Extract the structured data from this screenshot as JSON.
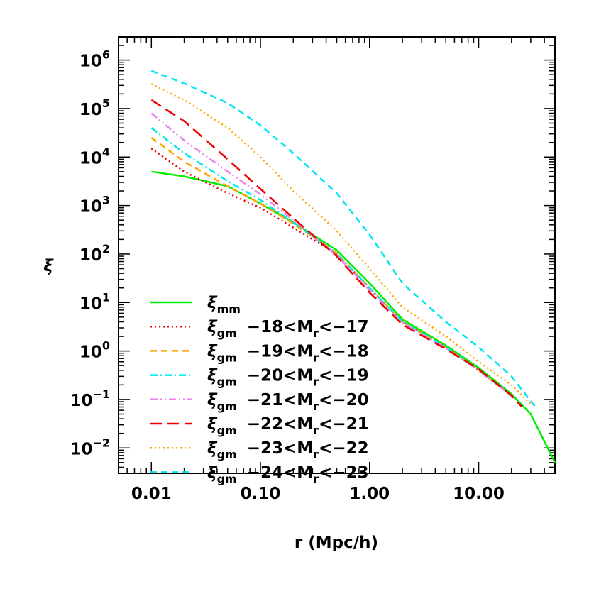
{
  "chart_data": {
    "type": "line",
    "xlabel": "r (Mpc/h)",
    "ylabel": "ξ",
    "x_scale": "log",
    "y_scale": "log",
    "xlim": [
      0.005,
      50
    ],
    "ylim": [
      0.003,
      3000000
    ],
    "x_ticks": [
      0.01,
      0.1,
      1,
      10
    ],
    "x_tick_labels": [
      "0.01",
      "0.10",
      "1.00",
      "10.00"
    ],
    "y_ticks": [
      0.01,
      0.1,
      1,
      10,
      100,
      1000,
      10000,
      100000,
      1000000
    ],
    "y_tick_labels": [
      {
        "base": "10",
        "exp": "−2"
      },
      {
        "base": "10",
        "exp": "−1"
      },
      {
        "base": "10",
        "exp": "0"
      },
      {
        "base": "10",
        "exp": "1"
      },
      {
        "base": "10",
        "exp": "2"
      },
      {
        "base": "10",
        "exp": "3"
      },
      {
        "base": "10",
        "exp": "4"
      },
      {
        "base": "10",
        "exp": "5"
      },
      {
        "base": "10",
        "exp": "6"
      }
    ],
    "grid": false,
    "legend_position": "lower-left",
    "series": [
      {
        "name": "ξmm",
        "xi": "ξ",
        "sub": "mm",
        "range": "",
        "color": "#00ee00",
        "dash": "solid",
        "points": [
          [
            0.01,
            5000
          ],
          [
            0.02,
            4000
          ],
          [
            0.05,
            2500
          ],
          [
            0.1,
            1100
          ],
          [
            0.2,
            450
          ],
          [
            0.5,
            120
          ],
          [
            1,
            25
          ],
          [
            2,
            4.5
          ],
          [
            5,
            1.3
          ],
          [
            10,
            0.45
          ],
          [
            20,
            0.13
          ],
          [
            30,
            0.05
          ],
          [
            50,
            0.005
          ]
        ]
      },
      {
        "name": "ξgm −18<Mr<−17",
        "xi": "ξ",
        "sub": "gm",
        "range": "−18<M",
        "range_sub": "r",
        "range_end": "<−17",
        "color": "#ee0000",
        "dash": "dotted",
        "points": [
          [
            0.01,
            15000
          ],
          [
            0.02,
            5000
          ],
          [
            0.05,
            1800
          ],
          [
            0.1,
            900
          ],
          [
            0.2,
            350
          ],
          [
            0.5,
            100
          ],
          [
            1,
            20
          ],
          [
            2,
            4
          ],
          [
            5,
            1.2
          ],
          [
            10,
            0.4
          ],
          [
            20,
            0.12
          ]
        ]
      },
      {
        "name": "ξgm −19<Mr<−18",
        "xi": "ξ",
        "sub": "gm",
        "range": "−19<M",
        "range_sub": "r",
        "range_end": "<−18",
        "color": "#ffa500",
        "dash": "dashed",
        "points": [
          [
            0.01,
            25000
          ],
          [
            0.02,
            8000
          ],
          [
            0.05,
            2500
          ],
          [
            0.1,
            1100
          ],
          [
            0.2,
            420
          ],
          [
            0.5,
            105
          ],
          [
            1,
            20
          ],
          [
            2,
            4
          ],
          [
            5,
            1.2
          ],
          [
            10,
            0.4
          ],
          [
            20,
            0.12
          ]
        ]
      },
      {
        "name": "ξgm −20<Mr<−19",
        "xi": "ξ",
        "sub": "gm",
        "range": "−20<M",
        "range_sub": "r",
        "range_end": "<−19",
        "color": "#00e5ee",
        "dash": "dashdot",
        "points": [
          [
            0.01,
            40000
          ],
          [
            0.02,
            12000
          ],
          [
            0.05,
            3200
          ],
          [
            0.1,
            1300
          ],
          [
            0.2,
            450
          ],
          [
            0.5,
            100
          ],
          [
            1,
            20
          ],
          [
            2,
            4
          ],
          [
            5,
            1.2
          ],
          [
            10,
            0.4
          ],
          [
            20,
            0.12
          ]
        ]
      },
      {
        "name": "ξgm −21<Mr<−20",
        "xi": "ξ",
        "sub": "gm",
        "range": "−21<M",
        "range_sub": "r",
        "range_end": "<−20",
        "color": "#ee82ee",
        "dash": "dashdotdot",
        "points": [
          [
            0.01,
            80000
          ],
          [
            0.02,
            22000
          ],
          [
            0.05,
            5000
          ],
          [
            0.1,
            1700
          ],
          [
            0.2,
            500
          ],
          [
            0.5,
            95
          ],
          [
            1,
            18
          ],
          [
            2,
            3.8
          ],
          [
            5,
            1.15
          ],
          [
            10,
            0.4
          ],
          [
            20,
            0.12
          ]
        ]
      },
      {
        "name": "ξgm −22<Mr<−21",
        "xi": "ξ",
        "sub": "gm",
        "range": "−22<M",
        "range_sub": "r",
        "range_end": "<−21",
        "color": "#ee0000",
        "dash": "longdash",
        "points": [
          [
            0.01,
            150000
          ],
          [
            0.02,
            55000
          ],
          [
            0.05,
            9000
          ],
          [
            0.1,
            2200
          ],
          [
            0.2,
            550
          ],
          [
            0.5,
            90
          ],
          [
            1,
            16
          ],
          [
            2,
            3.5
          ],
          [
            5,
            1.1
          ],
          [
            10,
            0.42
          ],
          [
            20,
            0.12
          ],
          [
            25,
            0.07
          ]
        ]
      },
      {
        "name": "ξgm −23<Mr<−22",
        "xi": "ξ",
        "sub": "gm",
        "range": "−23<M",
        "range_sub": "r",
        "range_end": "<−22",
        "color": "#ffa500",
        "dash": "dotted",
        "points": [
          [
            0.01,
            320000
          ],
          [
            0.02,
            150000
          ],
          [
            0.05,
            40000
          ],
          [
            0.1,
            10000
          ],
          [
            0.2,
            2000
          ],
          [
            0.5,
            300
          ],
          [
            1,
            50
          ],
          [
            2,
            8
          ],
          [
            5,
            2
          ],
          [
            10,
            0.6
          ],
          [
            20,
            0.2
          ],
          [
            30,
            0.08
          ]
        ]
      },
      {
        "name": "ξgm −24<Mr<−23",
        "xi": "ξ",
        "sub": "gm",
        "range": "−24<M",
        "range_sub": "r",
        "range_end": "<−23",
        "color": "#00e5ee",
        "dash": "dashed",
        "points": [
          [
            0.01,
            600000
          ],
          [
            0.02,
            330000
          ],
          [
            0.05,
            130000
          ],
          [
            0.1,
            45000
          ],
          [
            0.2,
            12000
          ],
          [
            0.5,
            1800
          ],
          [
            1,
            250
          ],
          [
            2,
            25
          ],
          [
            5,
            4
          ],
          [
            10,
            1.2
          ],
          [
            20,
            0.3
          ],
          [
            33,
            0.07
          ]
        ]
      }
    ]
  }
}
